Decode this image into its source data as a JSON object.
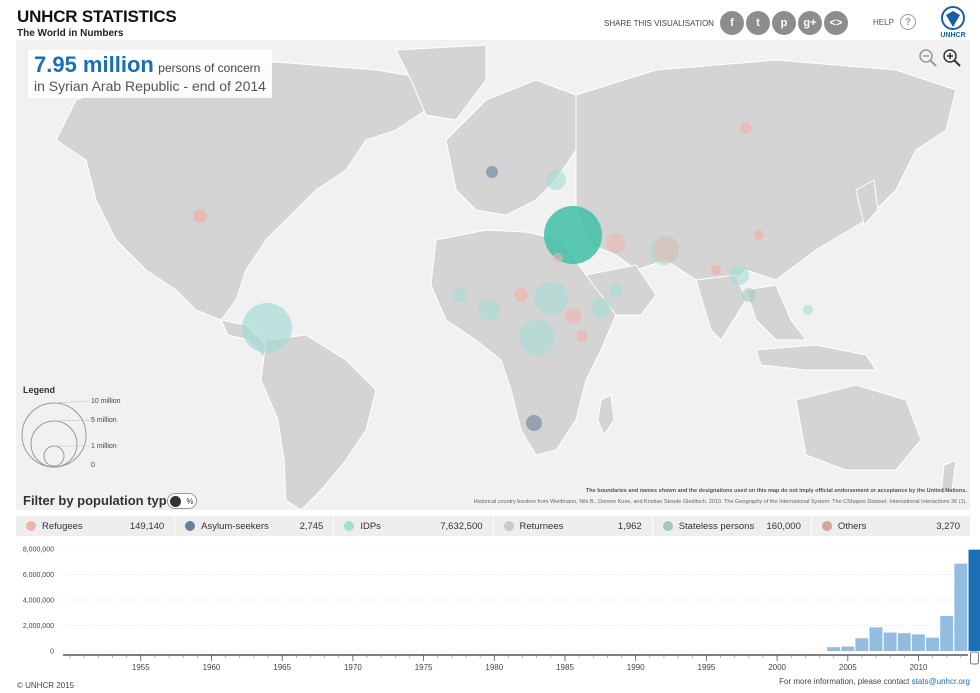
{
  "brand": {
    "title": "UNHCR STATISTICS",
    "subtitle": "The World in Numbers"
  },
  "share": {
    "label": "SHARE THIS VISUALISATION",
    "icons": [
      "facebook-icon",
      "twitter-icon",
      "pinterest-icon",
      "google-plus-icon",
      "embed-icon"
    ],
    "glyphs": [
      "f",
      "t",
      "p",
      "g+",
      "<>"
    ]
  },
  "help": {
    "label": "HELP",
    "glyph": "?"
  },
  "logo": {
    "text": "UNHCR"
  },
  "stat": {
    "value": "7.95 million",
    "unit": "persons of concern",
    "line2": "in Syrian Arab Republic - end of 2014"
  },
  "legend": {
    "title": "Legend",
    "labels": [
      "10 million",
      "5 million",
      "1 million",
      "0"
    ]
  },
  "disclaimer": {
    "line1": "The boundaries and names shown and the designations used on this map do not imply official endorsement or acceptance by the United Nations.",
    "line2": "Historical country borders from Weidmann, Nils B., Doreen Kuse, and Kristian Skrede Gleditsch. 2010. The Geography of the International System: The CShapes Dataset. International Interactions 36 (1)."
  },
  "filter": {
    "title": "Filter by population type",
    "toggle_percent": "%",
    "types": [
      {
        "label": "Refugees",
        "value": "149,140",
        "color": "#f2b1ab"
      },
      {
        "label": "Asylum-seekers",
        "value": "2,745",
        "color": "#6b7f99"
      },
      {
        "label": "IDPs",
        "value": "7,632,500",
        "color": "#a6dcd6"
      },
      {
        "label": "Returnees",
        "value": "1,962",
        "color": "#c9c9c9"
      },
      {
        "label": "Stateless persons",
        "value": "160,000",
        "color": "#a4c8bf"
      },
      {
        "label": "Others",
        "value": "3,270",
        "color": "#d6a3a0"
      }
    ]
  },
  "chart_data": {
    "type": "bar",
    "y_ticks": [
      "8,000,000",
      "6,000,000",
      "4,000,000",
      "2,000,000",
      "0"
    ],
    "x_ticks": [
      "1955",
      "1960",
      "1965",
      "1970",
      "1975",
      "1980",
      "1985",
      "1990",
      "1995",
      "2000",
      "2005",
      "2010"
    ],
    "ylim": [
      0,
      8000000
    ],
    "xlim": [
      1950,
      2014
    ],
    "x": [
      2004,
      2005,
      2006,
      2007,
      2008,
      2009,
      2010,
      2011,
      2012,
      2013,
      2014
    ],
    "values": [
      300000,
      350000,
      1000000,
      1850000,
      1450000,
      1400000,
      1300000,
      1050000,
      2750000,
      6850000,
      7950000
    ],
    "selected_year": 2014,
    "colors": {
      "bar": "#92bde0",
      "selected": "#1a6fb5"
    }
  },
  "footer": {
    "copyright": "© UNHCR  2015",
    "contact_text": "For more information, please contact ",
    "contact_email": "stats@unhcr.org"
  }
}
